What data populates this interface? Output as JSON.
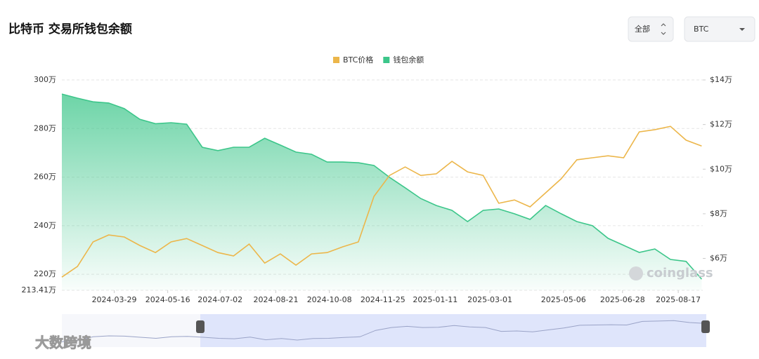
{
  "controls": {
    "range": "全部",
    "coin": "BTC"
  },
  "watermark": "coinglass",
  "footer_watermark": "大数跨境",
  "chart_data": {
    "type": "line",
    "title": "比特币 交易所钱包余额",
    "x": [
      "2024-02-11",
      "2024-02-25",
      "2024-03-10",
      "2024-03-24",
      "2024-04-07",
      "2024-04-21",
      "2024-05-05",
      "2024-05-19",
      "2024-06-02",
      "2024-06-16",
      "2024-06-30",
      "2024-07-14",
      "2024-07-28",
      "2024-08-11",
      "2024-08-25",
      "2024-09-08",
      "2024-09-22",
      "2024-10-06",
      "2024-10-20",
      "2024-11-03",
      "2024-11-17",
      "2024-12-01",
      "2024-12-15",
      "2024-12-29",
      "2025-01-12",
      "2025-01-26",
      "2025-02-09",
      "2025-02-23",
      "2025-03-09",
      "2025-03-23",
      "2025-04-06",
      "2025-04-20",
      "2025-05-04",
      "2025-05-18",
      "2025-06-01",
      "2025-06-15",
      "2025-06-29",
      "2025-07-13",
      "2025-07-27",
      "2025-08-10",
      "2025-08-24",
      "2025-09-07"
    ],
    "series": [
      {
        "name": "BTC价格",
        "color": "#ecb64a",
        "axis": "y2",
        "values": [
          5.16,
          5.64,
          6.74,
          7.05,
          6.96,
          6.58,
          6.26,
          6.74,
          6.89,
          6.58,
          6.26,
          6.11,
          6.64,
          5.79,
          6.2,
          5.7,
          6.2,
          6.26,
          6.52,
          6.74,
          8.78,
          9.72,
          10.1,
          9.72,
          9.79,
          10.35,
          9.88,
          9.72,
          8.47,
          8.62,
          8.31,
          8.94,
          9.57,
          10.42,
          10.51,
          10.6,
          10.51,
          11.67,
          11.77,
          11.92,
          11.3,
          11.04
        ]
      },
      {
        "name": "钱包余额",
        "color": "#3cc68a",
        "values": [
          294.2,
          292.5,
          291,
          290.5,
          288.2,
          283.8,
          282,
          282.4,
          281.8,
          272.3,
          270.9,
          272.3,
          272.3,
          276,
          273.2,
          270.3,
          269.4,
          266.2,
          266.2,
          265.9,
          264.8,
          259.9,
          255.6,
          251.2,
          248.3,
          246.3,
          241.7,
          246.3,
          246.9,
          244.9,
          242.6,
          248.3,
          244.9,
          241.7,
          240,
          234.8,
          231.9,
          229,
          230.4,
          226.1,
          225.3,
          218
        ]
      }
    ],
    "xlim": [
      "2024-02-11",
      "2025-09-08"
    ],
    "xticks": [
      "2024-03-29",
      "2024-05-16",
      "2024-07-02",
      "2024-08-21",
      "2024-10-08",
      "2024-11-25",
      "2025-01-11",
      "2025-03-01",
      "2025-05-06",
      "2025-06-28",
      "2025-08-17"
    ],
    "ylim": [
      213.41,
      300
    ],
    "yticks": [
      {
        "value": 300,
        "label": "300万"
      },
      {
        "value": 280,
        "label": "280万"
      },
      {
        "value": 260,
        "label": "260万"
      },
      {
        "value": 240,
        "label": "240万"
      },
      {
        "value": 220,
        "label": "220万"
      },
      {
        "value": 213.41,
        "label": "213.41万"
      }
    ],
    "y2lim": [
      4.57,
      14
    ],
    "y2ticks": [
      {
        "value": 14,
        "label": "$14万"
      },
      {
        "value": 12,
        "label": "$12万"
      },
      {
        "value": 10,
        "label": "$10万"
      },
      {
        "value": 8,
        "label": "$8万"
      },
      {
        "value": 6,
        "label": "$6万"
      }
    ],
    "grid": true,
    "legend": "top"
  }
}
